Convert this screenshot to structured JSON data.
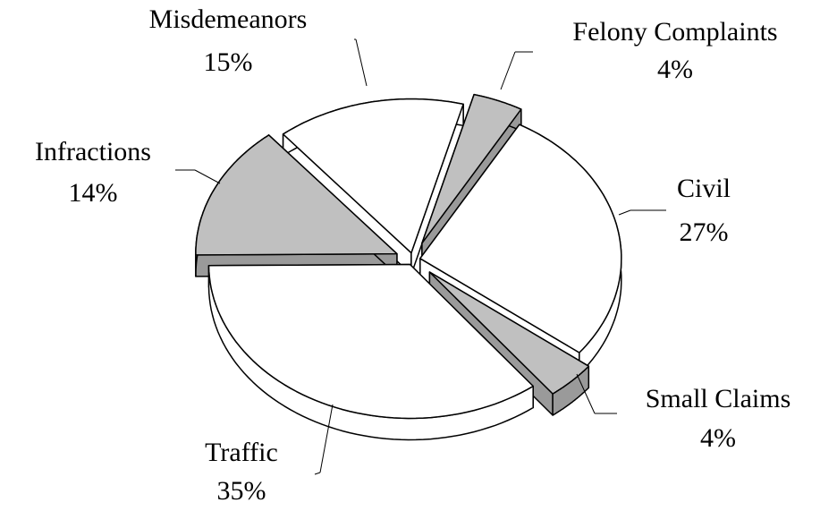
{
  "chart_data": {
    "type": "pie",
    "categories": [
      "Felony Complaints",
      "Civil",
      "Small Claims",
      "Traffic",
      "Infractions",
      "Misdemeanors"
    ],
    "values": [
      4,
      27,
      4,
      35,
      14,
      15
    ],
    "value_labels": [
      "4%",
      "27%",
      "4%",
      "35%",
      "14%",
      "15%"
    ],
    "colors": [
      "#c0c0c0",
      "#ffffff",
      "#c0c0c0",
      "#ffffff",
      "#c0c0c0",
      "#ffffff"
    ]
  }
}
